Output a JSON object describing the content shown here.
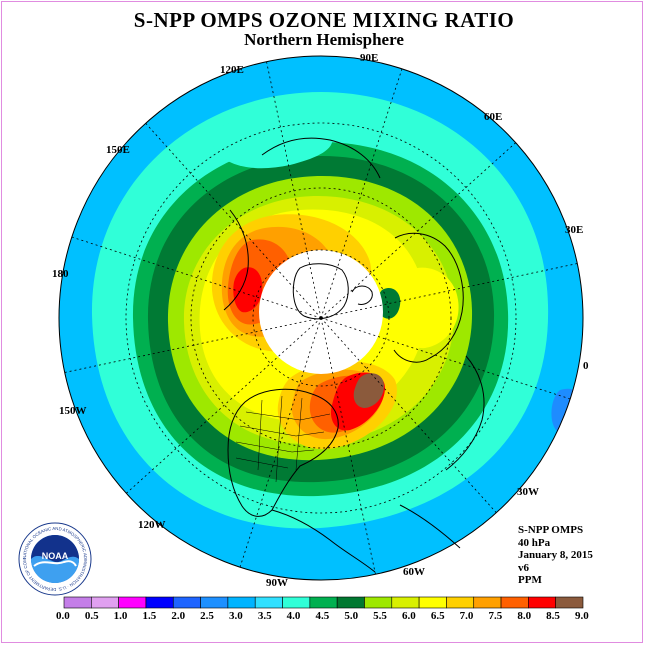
{
  "title": "S-NPP OMPS OZONE MIXING RATIO",
  "subtitle": "Northern Hemisphere",
  "longitude_labels": [
    "90E",
    "120E",
    "60E",
    "150E",
    "30E",
    "180",
    "0",
    "150W",
    "30W",
    "120W",
    "60W",
    "90W"
  ],
  "info": {
    "instrument": "S-NPP OMPS",
    "level": "40 hPa",
    "date": "January 8, 2015",
    "version": "v6",
    "units": "PPM"
  },
  "logo": {
    "text": "NOAA",
    "ring_text": "NATIONAL OCEANIC AND ATMOSPHERIC ADMINISTRATION · U.S. DEPARTMENT OF COMMERCE"
  },
  "colorbar": {
    "ticks": [
      "0.0",
      "0.5",
      "1.0",
      "1.5",
      "2.0",
      "2.5",
      "3.0",
      "3.5",
      "4.0",
      "4.5",
      "5.0",
      "5.5",
      "6.0",
      "6.5",
      "7.0",
      "7.5",
      "8.0",
      "8.5",
      "9.0"
    ],
    "colors": [
      "#c47ee8",
      "#e0a0f0",
      "#ff00ff",
      "#0000ff",
      "#1e64ff",
      "#1e90ff",
      "#00b4ff",
      "#30e0ff",
      "#30ffd8",
      "#00b050",
      "#007830",
      "#9ee800",
      "#d8f000",
      "#ffff00",
      "#ffd000",
      "#ffa000",
      "#ff6000",
      "#ff0000",
      "#8b5a3c"
    ]
  },
  "map_colors": {
    "outer": "#00c0ff",
    "c35": "#30ffd8",
    "c40": "#00b050",
    "c45": "#007a34",
    "c50": "#9ee800",
    "c55": "#d8f000",
    "c60": "#ffff00",
    "c65": "#ffd000",
    "c70": "#ffa000",
    "c75": "#ff6000",
    "c80": "#ff0000",
    "c85": "#8b5a3c",
    "pole": "#ffffff"
  }
}
